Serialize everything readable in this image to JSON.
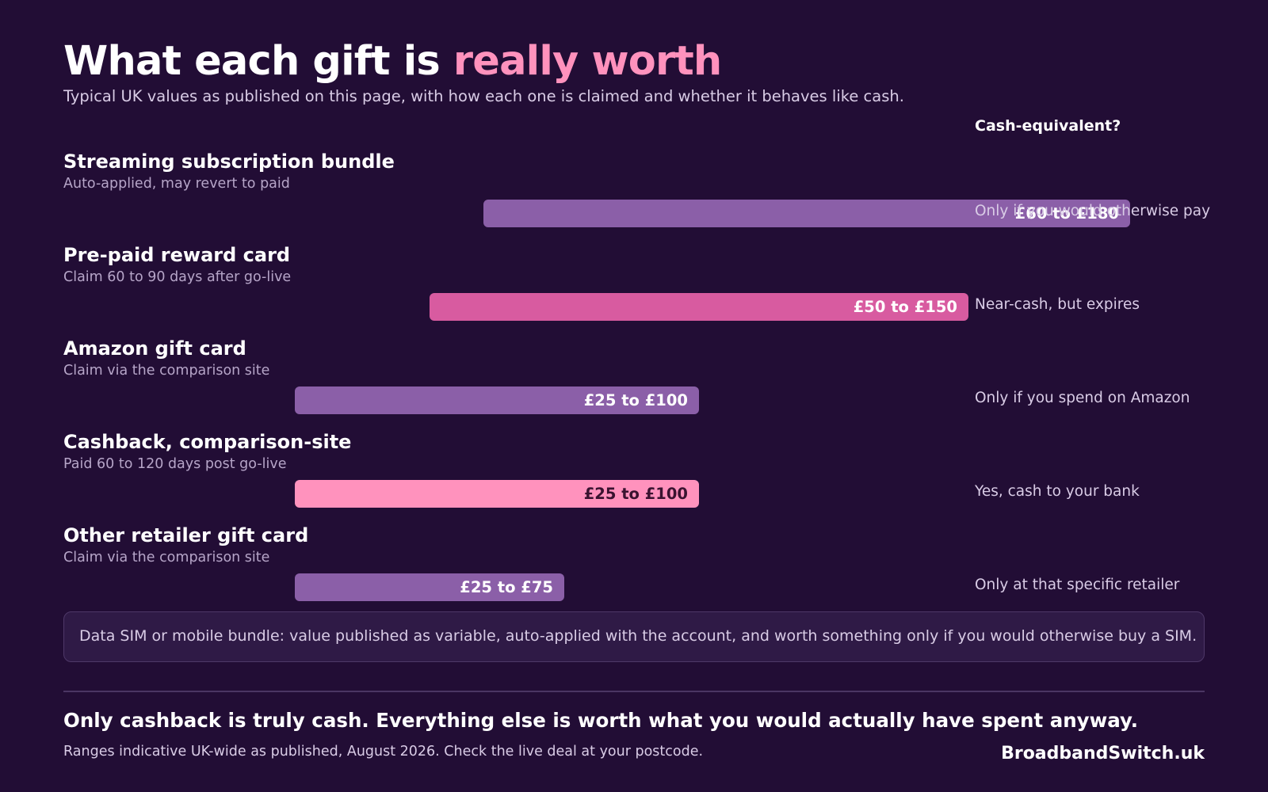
{
  "header": {
    "title_main": "What each gift is ",
    "title_accent": "really worth",
    "subtitle": "Typical UK values as published on this page, with how each one is claimed and whether it behaves like cash.",
    "cash_column_header": "Cash-equivalent?"
  },
  "colors": {
    "background": "#220d35",
    "accent": "#ff92bd",
    "purple_bar": "#8b5fa8",
    "magenta_bar": "#d85ba0",
    "pink_bar": "#ff92bd"
  },
  "chart_data": {
    "type": "bar",
    "orientation": "horizontal range",
    "x_unit": "£",
    "xlim": [
      0,
      200
    ],
    "grid": false,
    "legend": "none",
    "categories": [
      "Streaming subscription bundle",
      "Pre-paid reward card",
      "Amazon gift card",
      "Cashback, comparison-site",
      "Other retailer gift card"
    ],
    "rows": [
      {
        "label": "Streaming subscription bundle",
        "note": "Auto-applied, may revert to paid",
        "low": 60,
        "high": 180,
        "range_label": "£60 to £180",
        "cash_equivalent": "Only if you would otherwise pay",
        "color": "#8b5fa8",
        "label_color": "#ffffff"
      },
      {
        "label": "Pre-paid reward card",
        "note": "Claim 60 to 90 days after go-live",
        "low": 50,
        "high": 150,
        "range_label": "£50 to £150",
        "cash_equivalent": "Near-cash, but expires",
        "color": "#d85ba0",
        "label_color": "#ffffff"
      },
      {
        "label": "Amazon gift card",
        "note": "Claim via the comparison site",
        "low": 25,
        "high": 100,
        "range_label": "£25 to £100",
        "cash_equivalent": "Only if you spend on Amazon",
        "color": "#8b5fa8",
        "label_color": "#ffffff"
      },
      {
        "label": "Cashback, comparison-site",
        "note": "Paid 60 to 120 days post go-live",
        "low": 25,
        "high": 100,
        "range_label": "£25 to £100",
        "cash_equivalent": "Yes, cash to your bank",
        "color": "#ff92bd",
        "label_color": "#3a1330"
      },
      {
        "label": "Other retailer gift card",
        "note": "Claim via the comparison site",
        "low": 25,
        "high": 75,
        "range_label": "£25 to £75",
        "cash_equivalent": "Only at that specific retailer",
        "color": "#8b5fa8",
        "label_color": "#ffffff"
      }
    ]
  },
  "note_box": "Data SIM or mobile bundle: value published as variable, auto-applied with the account, and worth something only if you would otherwise buy a SIM.",
  "footer": {
    "takeaway": "Only cashback is truly cash.  Everything else is worth what you would actually have spent anyway.",
    "footnote": "Ranges indicative UK-wide as published, August 2026.  Check the live deal at your postcode.",
    "brand": "BroadbandSwitch.uk"
  }
}
